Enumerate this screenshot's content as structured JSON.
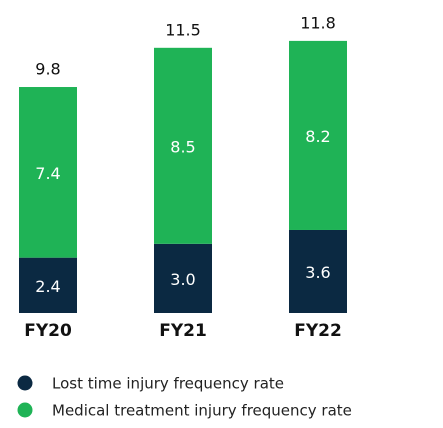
{
  "chart_data": {
    "type": "stacked-bar",
    "categories": [
      "FY20",
      "FY21",
      "FY22"
    ],
    "series": [
      {
        "name": "Lost time injury frequency rate",
        "color": "#0b2942",
        "values": [
          2.4,
          3.0,
          3.6
        ],
        "value_labels": [
          "2.4",
          "3.0",
          "3.6"
        ]
      },
      {
        "name": "Medical treatment injury frequency rate",
        "color": "#1fb356",
        "values": [
          7.4,
          8.5,
          8.2
        ]
      }
    ],
    "totals": [
      9.8,
      11.5,
      11.8
    ]
  }
}
